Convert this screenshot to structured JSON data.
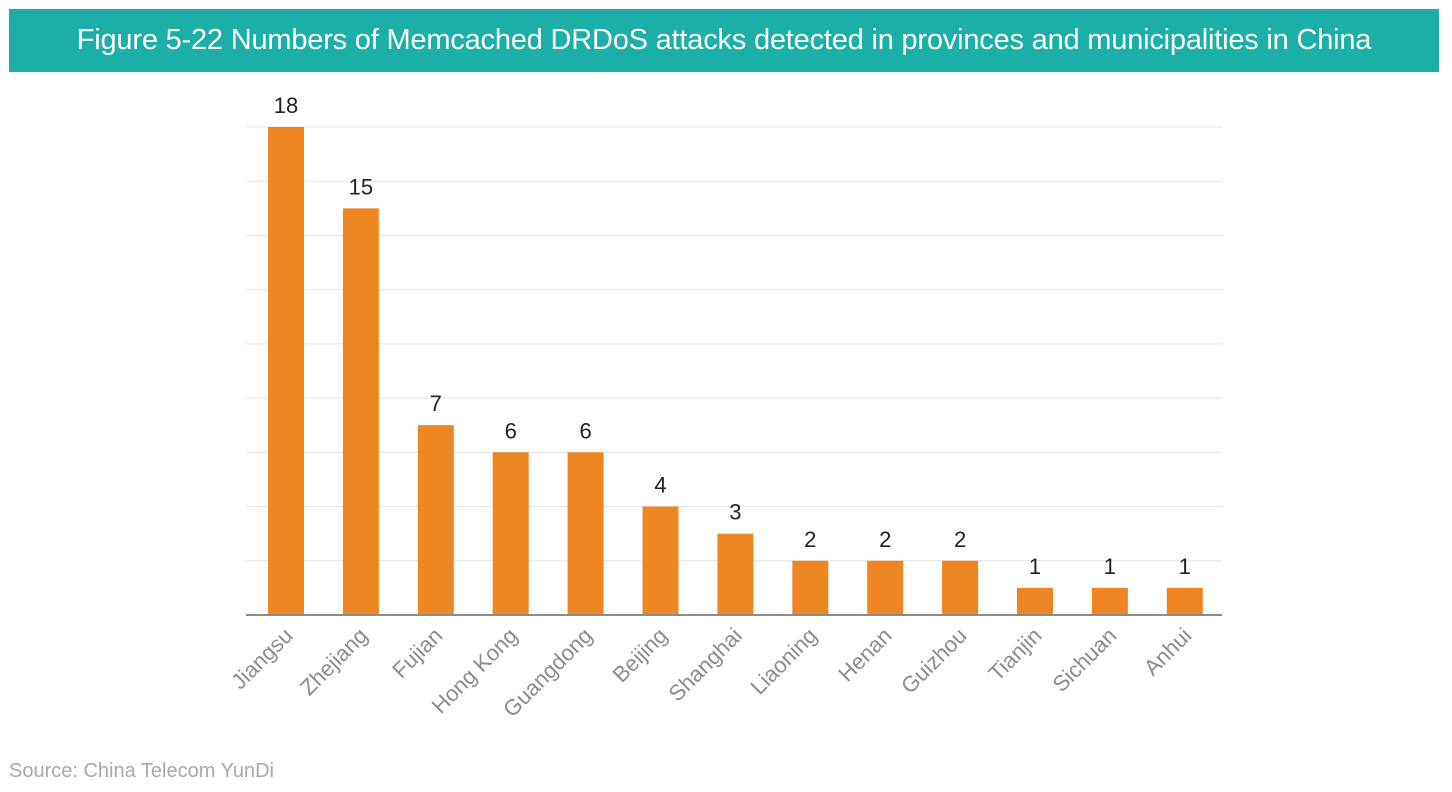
{
  "header": {
    "title": "Figure 5-22 Numbers of Memcached DRDoS attacks detected in provinces and municipalities in China"
  },
  "source": {
    "text": "Source: China Telecom YunDi"
  },
  "colors": {
    "header_bg": "#1bafa8",
    "bar": "#ee8623",
    "gridline": "#e3e3e3",
    "axis": "#8c8c8c",
    "tick_label": "#8c8c8c",
    "data_label": "#222222",
    "source_text": "#a8a8a8"
  },
  "chart_data": {
    "type": "bar",
    "title": "Figure 5-22 Numbers of Memcached DRDoS attacks detected in provinces and municipalities in China",
    "xlabel": "",
    "ylabel": "",
    "categories": [
      "Jiangsu",
      "Zhejiang",
      "Fujian",
      "Hong Kong",
      "Guangdong",
      "Beijing",
      "Shanghai",
      "Liaoning",
      "Henan",
      "Guizhou",
      "Tianjin",
      "Sichuan",
      "Anhui"
    ],
    "values": [
      18,
      15,
      7,
      6,
      6,
      4,
      3,
      2,
      2,
      2,
      1,
      1,
      1
    ],
    "ylim": [
      0,
      18
    ],
    "ytick_step": 2,
    "grid": true,
    "legend": "none",
    "data_labels": true,
    "tick_label_rotation": "45-degrees"
  }
}
